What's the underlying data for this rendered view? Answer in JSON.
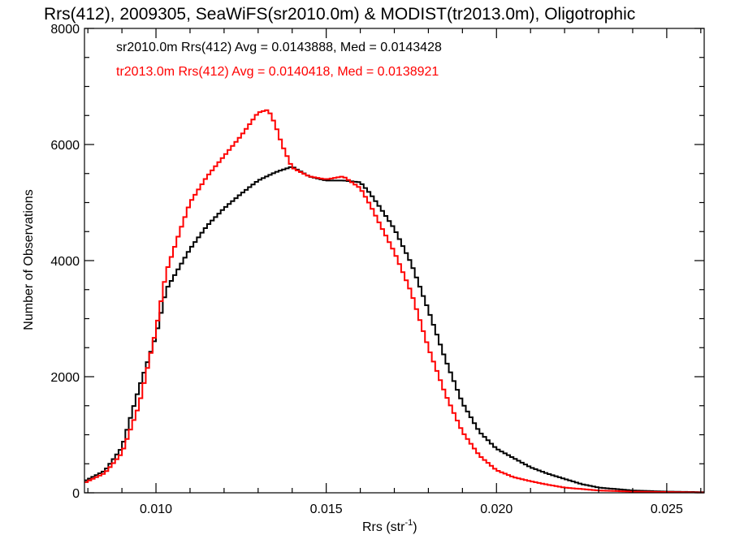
{
  "chart_data": {
    "type": "histogram-step",
    "title": "Rrs(412), 2009305, SeaWiFS(sr2010.0m) & MODIST(tr2013.0m), Oligotrophic",
    "xlabel": "Rrs (str",
    "xlabel_sup": "-1",
    "xlabel_end": ")",
    "ylabel": "Number of Observations",
    "xlim": [
      0.0079,
      0.0261
    ],
    "ylim": [
      0,
      8000
    ],
    "x_ticks": [
      0.01,
      0.015,
      0.02,
      0.025
    ],
    "x_tick_labels": [
      "0.010",
      "0.015",
      "0.020",
      "0.025"
    ],
    "y_ticks": [
      0,
      2000,
      4000,
      6000,
      8000
    ],
    "y_tick_labels": [
      "0",
      "2000",
      "4000",
      "6000",
      "8000"
    ],
    "bin_width": 0.0001,
    "legend_placement": "top-left",
    "legend": [
      {
        "text": "sr2010.0m Rrs(412) Avg = 0.0143888, Med = 0.0143428",
        "color": "#000000"
      },
      {
        "text": "tr2013.0m Rrs(412) Avg = 0.0140418, Med = 0.0138921",
        "color": "#ff0000"
      }
    ],
    "series": [
      {
        "color": "#000000",
        "points": [
          [
            0.0079,
            200
          ],
          [
            0.0085,
            380
          ],
          [
            0.009,
            780
          ],
          [
            0.0095,
            1800
          ],
          [
            0.01,
            2700
          ],
          [
            0.0103,
            3500
          ],
          [
            0.0107,
            3900
          ],
          [
            0.011,
            4200
          ],
          [
            0.0115,
            4600
          ],
          [
            0.012,
            4900
          ],
          [
            0.0125,
            5150
          ],
          [
            0.013,
            5380
          ],
          [
            0.0135,
            5520
          ],
          [
            0.014,
            5620
          ],
          [
            0.0145,
            5450
          ],
          [
            0.015,
            5380
          ],
          [
            0.0155,
            5380
          ],
          [
            0.016,
            5350
          ],
          [
            0.0163,
            5150
          ],
          [
            0.0166,
            4900
          ],
          [
            0.017,
            4550
          ],
          [
            0.0175,
            3950
          ],
          [
            0.018,
            3150
          ],
          [
            0.0185,
            2300
          ],
          [
            0.019,
            1550
          ],
          [
            0.0195,
            1050
          ],
          [
            0.02,
            760
          ],
          [
            0.0205,
            600
          ],
          [
            0.021,
            440
          ],
          [
            0.0215,
            330
          ],
          [
            0.022,
            240
          ],
          [
            0.0225,
            150
          ],
          [
            0.023,
            90
          ],
          [
            0.024,
            40
          ],
          [
            0.025,
            20
          ],
          [
            0.0261,
            10
          ]
        ]
      },
      {
        "color": "#ff0000",
        "points": [
          [
            0.0079,
            170
          ],
          [
            0.0085,
            340
          ],
          [
            0.009,
            680
          ],
          [
            0.0095,
            1500
          ],
          [
            0.01,
            2800
          ],
          [
            0.0103,
            3800
          ],
          [
            0.0107,
            4500
          ],
          [
            0.011,
            5000
          ],
          [
            0.0115,
            5450
          ],
          [
            0.012,
            5800
          ],
          [
            0.0125,
            6150
          ],
          [
            0.013,
            6550
          ],
          [
            0.0133,
            6600
          ],
          [
            0.0135,
            6350
          ],
          [
            0.0137,
            6000
          ],
          [
            0.014,
            5600
          ],
          [
            0.0145,
            5450
          ],
          [
            0.015,
            5400
          ],
          [
            0.0155,
            5450
          ],
          [
            0.016,
            5250
          ],
          [
            0.0163,
            4950
          ],
          [
            0.0166,
            4600
          ],
          [
            0.017,
            4150
          ],
          [
            0.0175,
            3450
          ],
          [
            0.018,
            2500
          ],
          [
            0.0185,
            1700
          ],
          [
            0.019,
            1050
          ],
          [
            0.0195,
            640
          ],
          [
            0.02,
            390
          ],
          [
            0.0205,
            270
          ],
          [
            0.021,
            200
          ],
          [
            0.0215,
            140
          ],
          [
            0.022,
            90
          ],
          [
            0.023,
            40
          ],
          [
            0.024,
            20
          ],
          [
            0.0261,
            5
          ]
        ]
      }
    ]
  }
}
